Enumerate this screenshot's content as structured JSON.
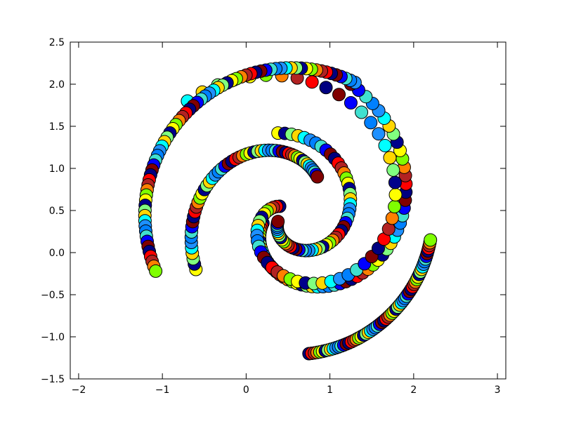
{
  "chart_data": {
    "type": "scatter",
    "title": "",
    "xlabel": "",
    "ylabel": "",
    "xlim": [
      -2.1,
      3.1
    ],
    "ylim": [
      -1.5,
      2.5
    ],
    "grid": false,
    "legend": "none",
    "colormap": "jet",
    "xticks": [
      {
        "value": -2,
        "label": "−2"
      },
      {
        "value": -1,
        "label": "−1"
      },
      {
        "value": 0,
        "label": "0"
      },
      {
        "value": 1,
        "label": "1"
      },
      {
        "value": 2,
        "label": "2"
      },
      {
        "value": 3,
        "label": "3"
      }
    ],
    "yticks": [
      {
        "value": -1.5,
        "label": "−1.5"
      },
      {
        "value": -1.0,
        "label": "−1.0"
      },
      {
        "value": -0.5,
        "label": "−0.5"
      },
      {
        "value": 0.0,
        "label": "0.0"
      },
      {
        "value": 0.5,
        "label": "0.5"
      },
      {
        "value": 1.0,
        "label": "1.0"
      },
      {
        "value": 1.5,
        "label": "1.5"
      },
      {
        "value": 2.0,
        "label": "2.0"
      },
      {
        "value": 2.5,
        "label": "2.5"
      }
    ],
    "center": [
      0.55,
      0.45
    ],
    "arms": [
      {
        "start": [
          0.75,
          -1.2
        ],
        "end": [
          2.2,
          0.15
        ],
        "points": 65
      },
      {
        "start": [
          -0.6,
          -0.2
        ],
        "end": [
          0.85,
          0.9
        ],
        "points": 55
      },
      {
        "start": [
          0.2,
          0.35
        ],
        "end": [
          1.25,
          2.0
        ],
        "points": 60
      },
      {
        "start": [
          0.4,
          0.55
        ],
        "end": [
          -0.7,
          1.8
        ],
        "points": 55
      },
      {
        "start": [
          1.3,
          2.02
        ],
        "end": [
          -1.08,
          -0.22
        ],
        "points": 70
      },
      {
        "start": [
          0.38,
          1.42
        ],
        "end": [
          0.38,
          0.37
        ],
        "points": 55
      }
    ],
    "color_sequence": [
      "#000080",
      "#0000ff",
      "#0080ff",
      "#00ffff",
      "#80ff80",
      "#ffff00",
      "#ff8000",
      "#ff0000",
      "#800000",
      "#40e0d0",
      "#1e90ff",
      "#ffd700",
      "#00008b",
      "#7fff00",
      "#b22222"
    ]
  }
}
